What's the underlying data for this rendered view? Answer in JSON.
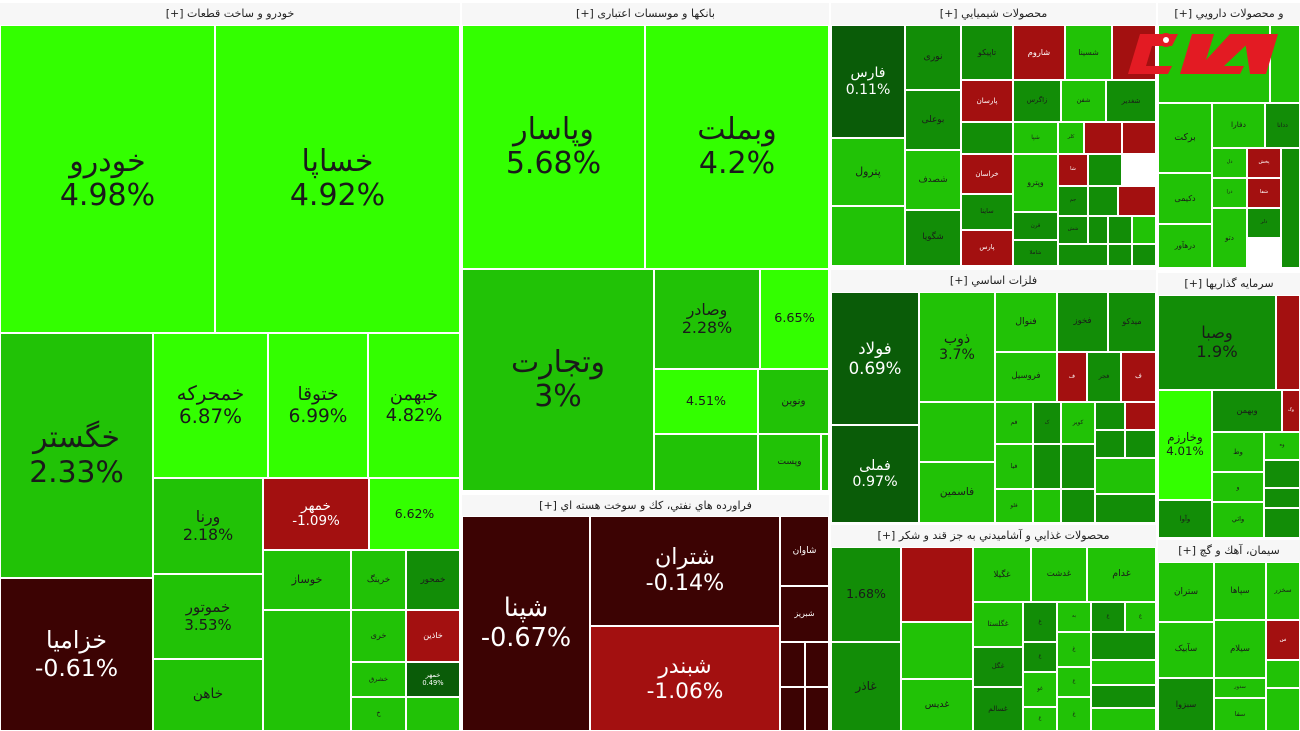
{
  "chart_data": {
    "type": "treemap",
    "colors": {
      "pos_bright": "#33ff00",
      "pos_mid": "#21c206",
      "pos_dark": "#128d07",
      "pos_darker": "#0a5c08",
      "neg_light": "#a31010",
      "neg_mid": "#7b0a0a",
      "neg_dark": "#3c0303",
      "header_bg": "#f7f7f7"
    },
    "sectors": [
      {
        "title": "خودرو و ساخت قطعات [+]",
        "cells": [
          {
            "symbol": "خودرو",
            "change": "4.98%",
            "value": 4.98
          },
          {
            "symbol": "خساپا",
            "change": "4.92%",
            "value": 4.92
          },
          {
            "symbol": "خگستر",
            "change": "2.33%",
            "value": 2.33
          },
          {
            "symbol": "خزامیا",
            "change": "-0.61%",
            "value": -0.61
          },
          {
            "symbol": "خمحرکه",
            "change": "6.87%",
            "value": 6.87
          },
          {
            "symbol": "ختوقا",
            "change": "6.99%",
            "value": 6.99
          },
          {
            "symbol": "خبهمن",
            "change": "4.82%",
            "value": 4.82
          },
          {
            "symbol": "ورنا",
            "change": "2.18%",
            "value": 2.18
          },
          {
            "symbol": "خمهر",
            "change": "-1.09%",
            "value": -1.09
          },
          {
            "symbol": "",
            "change": "6.62%",
            "value": 6.62
          },
          {
            "symbol": "خموتور",
            "change": "3.53%",
            "value": 3.53
          },
          {
            "symbol": "خوساز",
            "change": "",
            "value": 3
          },
          {
            "symbol": "خرینگ",
            "change": "",
            "value": 3
          },
          {
            "symbol": "خمحور",
            "change": "",
            "value": 1
          },
          {
            "symbol": "خری",
            "change": "",
            "value": 3
          },
          {
            "symbol": "خاذین",
            "change": "",
            "value": -1
          },
          {
            "symbol": "خشرق",
            "change": "",
            "value": 3
          },
          {
            "symbol": "خمهر",
            "change": "0.49%",
            "value": 0.49
          },
          {
            "symbol": "خاهن",
            "change": "",
            "value": 3
          },
          {
            "symbol": "خ",
            "change": "",
            "value": 3
          },
          {
            "symbol": "",
            "change": "",
            "value": 3
          },
          {
            "symbol": "",
            "change": "",
            "value": 3
          }
        ]
      },
      {
        "title": "بانکها و موسسات اعتباری [+]",
        "cells": [
          {
            "symbol": "وپاسار",
            "change": "5.68%",
            "value": 5.68
          },
          {
            "symbol": "وبملت",
            "change": "4.2%",
            "value": 4.2
          },
          {
            "symbol": "وتجارت",
            "change": "3%",
            "value": 3
          },
          {
            "symbol": "وصادر",
            "change": "2.28%",
            "value": 2.28
          },
          {
            "symbol": "",
            "change": "6.65%",
            "value": 6.65
          },
          {
            "symbol": "",
            "change": "4.51%",
            "value": 4.51
          },
          {
            "symbol": "ونوین",
            "change": "",
            "value": 3
          },
          {
            "symbol": "",
            "change": "",
            "value": 3
          },
          {
            "symbol": "وپست",
            "change": "",
            "value": 3
          },
          {
            "symbol": "",
            "change": "",
            "value": 3
          }
        ]
      },
      {
        "title": "فراورده هاي نفتي، كك و سوخت هسته اي [+]",
        "cells": [
          {
            "symbol": "شپنا",
            "change": "-0.67%",
            "value": -0.67
          },
          {
            "symbol": "شتران",
            "change": "-0.14%",
            "value": -0.14
          },
          {
            "symbol": "شبندر",
            "change": "-1.06%",
            "value": -1.06
          },
          {
            "symbol": "شاوان",
            "change": "",
            "value": -0.5
          },
          {
            "symbol": "شبریز",
            "change": "",
            "value": -0.5
          },
          {
            "symbol": "",
            "change": "",
            "value": -0.5
          },
          {
            "symbol": "",
            "change": "",
            "value": -0.5
          },
          {
            "symbol": "",
            "change": "",
            "value": -0.5
          },
          {
            "symbol": "",
            "change": "",
            "value": -0.5
          }
        ]
      },
      {
        "title": "محصولات شيميايي [+]",
        "cells": [
          {
            "symbol": "فارس",
            "change": "0.11%",
            "value": 0.11
          },
          {
            "symbol": "نوری",
            "change": "",
            "value": 1
          },
          {
            "symbol": "تاپیکو",
            "change": "",
            "value": 1
          },
          {
            "symbol": "شاروم",
            "change": "",
            "value": -1
          },
          {
            "symbol": "شسینا",
            "change": "",
            "value": 3
          },
          {
            "symbol": "",
            "change": "",
            "value": -1
          },
          {
            "symbol": "بوعلی",
            "change": "",
            "value": 1
          },
          {
            "symbol": "پارسان",
            "change": "",
            "value": -1
          },
          {
            "symbol": "زاگرس",
            "change": "",
            "value": 1
          },
          {
            "symbol": "شفن",
            "change": "",
            "value": 3
          },
          {
            "symbol": "شغدیر",
            "change": "",
            "value": 1
          },
          {
            "symbol": "",
            "change": "",
            "value": 1
          },
          {
            "symbol": "شپا",
            "change": "",
            "value": 3
          },
          {
            "symbol": "کلر",
            "change": "",
            "value": 3
          },
          {
            "symbol": "",
            "change": "",
            "value": -1
          },
          {
            "symbol": "",
            "change": "",
            "value": -1
          },
          {
            "symbol": "شصدف",
            "change": "",
            "value": 3
          },
          {
            "symbol": "خراسان",
            "change": "",
            "value": -1
          },
          {
            "symbol": "شا",
            "change": "",
            "value": -1
          },
          {
            "symbol": "",
            "change": "",
            "value": 1
          },
          {
            "symbol": "پترول",
            "change": "",
            "value": 3
          },
          {
            "symbol": "شگویا",
            "change": "",
            "value": 1
          },
          {
            "symbol": "ساینا",
            "change": "",
            "value": 1
          },
          {
            "symbol": "وپترو",
            "change": "",
            "value": 3
          },
          {
            "symbol": "جم",
            "change": "",
            "value": 1
          },
          {
            "symbol": "قرن",
            "change": "",
            "value": 1
          },
          {
            "symbol": "شاملا",
            "change": "",
            "value": 1
          },
          {
            "symbol": "پارس",
            "change": "",
            "value": -1
          },
          {
            "symbol": "شش",
            "change": "",
            "value": 1
          },
          {
            "symbol": "",
            "change": "",
            "value": 1
          },
          {
            "symbol": "",
            "change": "",
            "value": -1
          },
          {
            "symbol": "",
            "change": "",
            "value": 1
          },
          {
            "symbol": "",
            "change": "",
            "value": 1
          },
          {
            "symbol": "",
            "change": "",
            "value": 3
          },
          {
            "symbol": "",
            "change": "",
            "value": 1
          },
          {
            "symbol": "",
            "change": "",
            "value": 1
          },
          {
            "symbol": "",
            "change": "",
            "value": 1
          },
          {
            "symbol": "",
            "change": "",
            "value": 3
          }
        ]
      },
      {
        "title": "فلزات اساسي [+]",
        "cells": [
          {
            "symbol": "فولاد",
            "change": "0.69%",
            "value": 0.69
          },
          {
            "symbol": "فملی",
            "change": "0.97%",
            "value": 0.97
          },
          {
            "symbol": "ذوب",
            "change": "3.7%",
            "value": 3.7
          },
          {
            "symbol": "",
            "change": "",
            "value": 3
          },
          {
            "symbol": "فنوال",
            "change": "",
            "value": 3
          },
          {
            "symbol": "فخوز",
            "change": "",
            "value": 1
          },
          {
            "symbol": "میدکو",
            "change": "",
            "value": 1
          },
          {
            "symbol": "فروسیل",
            "change": "",
            "value": 3
          },
          {
            "symbol": "ف",
            "change": "",
            "value": -1
          },
          {
            "symbol": "فجر",
            "change": "",
            "value": 1
          },
          {
            "symbol": "ف",
            "change": "",
            "value": -1
          },
          {
            "symbol": "فم",
            "change": "",
            "value": 3
          },
          {
            "symbol": "ک",
            "change": "",
            "value": 1
          },
          {
            "symbol": "کویر",
            "change": "",
            "value": 3
          },
          {
            "symbol": "",
            "change": "",
            "value": 1
          },
          {
            "symbol": "فیا",
            "change": "",
            "value": 3
          },
          {
            "symbol": "",
            "change": "",
            "value": 1
          },
          {
            "symbol": "",
            "change": "",
            "value": -1
          },
          {
            "symbol": "",
            "change": "",
            "value": 1
          },
          {
            "symbol": "فاسمین",
            "change": "",
            "value": 3
          },
          {
            "symbol": "فلو",
            "change": "",
            "value": 3
          },
          {
            "symbol": "",
            "change": "",
            "value": 1
          },
          {
            "symbol": "",
            "change": "",
            "value": 1
          },
          {
            "symbol": "",
            "change": "",
            "value": 3
          },
          {
            "symbol": "",
            "change": "",
            "value": 1
          },
          {
            "symbol": "",
            "change": "",
            "value": 3
          },
          {
            "symbol": "",
            "change": "",
            "value": 1
          }
        ]
      },
      {
        "title": "محصولات غذايي و آشاميدني به جز قند و شكر [+]",
        "cells": [
          {
            "symbol": "",
            "change": "1.68%",
            "value": 1.68
          },
          {
            "symbol": "",
            "change": "",
            "value": -1
          },
          {
            "symbol": "غگیلا",
            "change": "",
            "value": 3
          },
          {
            "symbol": "غدشت",
            "change": "",
            "value": 3
          },
          {
            "symbol": "غدام",
            "change": "",
            "value": 3
          },
          {
            "symbol": "غگلستا",
            "change": "",
            "value": 3
          },
          {
            "symbol": "غ",
            "change": "",
            "value": 1
          },
          {
            "symbol": "به",
            "change": "",
            "value": 3
          },
          {
            "symbol": "غ",
            "change": "",
            "value": 1
          },
          {
            "symbol": "غ",
            "change": "",
            "value": 3
          },
          {
            "symbol": "",
            "change": "",
            "value": 3
          },
          {
            "symbol": "غدیس",
            "change": "",
            "value": 3
          },
          {
            "symbol": "غگل",
            "change": "",
            "value": 1
          },
          {
            "symbol": "غ",
            "change": "",
            "value": 1
          },
          {
            "symbol": "غو",
            "change": "",
            "value": 3
          },
          {
            "symbol": "غ",
            "change": "",
            "value": 3
          },
          {
            "symbol": "غ",
            "change": "",
            "value": 3
          },
          {
            "symbol": "",
            "change": "",
            "value": 1
          },
          {
            "symbol": "",
            "change": "",
            "value": 3
          },
          {
            "symbol": "غاذر",
            "change": "",
            "value": 1
          },
          {
            "symbol": "غسالم",
            "change": "",
            "value": 1
          },
          {
            "symbol": "غ",
            "change": "",
            "value": 3
          },
          {
            "symbol": "غ",
            "change": "",
            "value": 3
          },
          {
            "symbol": "",
            "change": "",
            "value": 1
          },
          {
            "symbol": "",
            "change": "",
            "value": 3
          }
        ]
      },
      {
        "title": "و محصولات دارويي [+]",
        "cells": [
          {
            "symbol": "",
            "change": "",
            "value": 3
          },
          {
            "symbol": "بركت",
            "change": "",
            "value": 3
          },
          {
            "symbol": "دفارا",
            "change": "",
            "value": 3
          },
          {
            "symbol": "ددانا",
            "change": "",
            "value": 1
          },
          {
            "symbol": "دل",
            "change": "",
            "value": 3
          },
          {
            "symbol": "پخش",
            "change": "",
            "value": -1
          },
          {
            "symbol": "شفا",
            "change": "",
            "value": -1
          },
          {
            "symbol": "دکیمی",
            "change": "",
            "value": 3
          },
          {
            "symbol": "درا",
            "change": "",
            "value": 3
          },
          {
            "symbol": "دلر",
            "change": "",
            "value": 1
          },
          {
            "symbol": "دتو",
            "change": "",
            "value": 3
          },
          {
            "symbol": "درهآور",
            "change": "",
            "value": 3
          },
          {
            "symbol": "",
            "change": "",
            "value": 3
          },
          {
            "symbol": "",
            "change": "",
            "value": 1
          }
        ]
      },
      {
        "title": "سرمايه گذاريها [+]",
        "cells": [
          {
            "symbol": "وصبا",
            "change": "1.9%",
            "value": 1.9
          },
          {
            "symbol": "",
            "change": "",
            "value": -1
          },
          {
            "symbol": "وبهمن",
            "change": "",
            "value": 1
          },
          {
            "symbol": "وگ",
            "change": "",
            "value": -1
          },
          {
            "symbol": "وخارزم",
            "change": "4.01%",
            "value": 4.01
          },
          {
            "symbol": "وط",
            "change": "",
            "value": 3
          },
          {
            "symbol": "وه",
            "change": "",
            "value": 3
          },
          {
            "symbol": "",
            "change": "",
            "value": 1
          },
          {
            "symbol": "و",
            "change": "",
            "value": 3
          },
          {
            "symbol": "",
            "change": "",
            "value": 1
          },
          {
            "symbol": "وآوا",
            "change": "",
            "value": 1
          },
          {
            "symbol": "واتي",
            "change": "",
            "value": 3
          },
          {
            "symbol": "",
            "change": "",
            "value": 1
          }
        ]
      },
      {
        "title": "سيمان، آهك و گچ [+]",
        "cells": [
          {
            "symbol": "ستران",
            "change": "",
            "value": 3
          },
          {
            "symbol": "سپاها",
            "change": "",
            "value": 3
          },
          {
            "symbol": "سخزر",
            "change": "",
            "value": 3
          },
          {
            "symbol": "سآبیک",
            "change": "",
            "value": 3
          },
          {
            "symbol": "سیلام",
            "change": "",
            "value": 3
          },
          {
            "symbol": "س",
            "change": "",
            "value": -1
          },
          {
            "symbol": "سدور",
            "change": "",
            "value": 3
          },
          {
            "symbol": "",
            "change": "",
            "value": 3
          },
          {
            "symbol": "سبزوا",
            "change": "",
            "value": 1
          },
          {
            "symbol": "سفا",
            "change": "",
            "value": 3
          },
          {
            "symbol": "",
            "change": "",
            "value": 3
          }
        ]
      }
    ]
  },
  "logo": {
    "text": "رکنا",
    "bg": "#e31b23",
    "fg": "#ffffff"
  }
}
